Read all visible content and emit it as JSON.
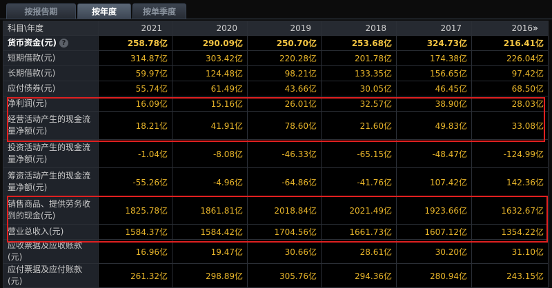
{
  "tabs": [
    {
      "label": "按报告期",
      "active": false
    },
    {
      "label": "按年度",
      "active": true
    },
    {
      "label": "按单季度",
      "active": false
    }
  ],
  "header": {
    "first_col": "科目\\年度",
    "years": [
      "2021",
      "2020",
      "2019",
      "2018",
      "2017",
      "2016"
    ],
    "more_glyph": "»"
  },
  "rows": [
    {
      "label": "货币资金(元)",
      "values": [
        "258.78亿",
        "290.09亿",
        "250.70亿",
        "253.68亿",
        "324.73亿",
        "216.41亿"
      ]
    },
    {
      "label": "短期借款(元)",
      "values": [
        "314.87亿",
        "303.42亿",
        "220.28亿",
        "201.78亿",
        "174.38亿",
        "226.04亿"
      ]
    },
    {
      "label": "长期借款(元)",
      "values": [
        "59.97亿",
        "124.48亿",
        "98.21亿",
        "133.35亿",
        "156.65亿",
        "97.42亿"
      ]
    },
    {
      "label": "应付债券(元)",
      "values": [
        "55.74亿",
        "61.49亿",
        "43.66亿",
        "30.05亿",
        "46.45亿",
        "68.50亿"
      ]
    },
    {
      "label": "净利润(元)",
      "values": [
        "16.09亿",
        "15.16亿",
        "26.01亿",
        "32.57亿",
        "38.90亿",
        "28.03亿"
      ]
    },
    {
      "label": "经营活动产生的现金流量净额(元)",
      "values": [
        "18.21亿",
        "41.91亿",
        "78.60亿",
        "21.60亿",
        "49.83亿",
        "33.08亿"
      ]
    },
    {
      "label": "投资活动产生的现金流量净额(元)",
      "values": [
        "-1.04亿",
        "-8.08亿",
        "-46.33亿",
        "-65.15亿",
        "-48.47亿",
        "-124.99亿"
      ]
    },
    {
      "label": "筹资活动产生的现金流量净额(元)",
      "values": [
        "-55.26亿",
        "-4.96亿",
        "-64.86亿",
        "-41.76亿",
        "107.42亿",
        "142.36亿"
      ]
    },
    {
      "label": "销售商品、提供劳务收到的现金(元)",
      "values": [
        "1825.78亿",
        "1861.81亿",
        "2018.84亿",
        "2021.49亿",
        "1923.66亿",
        "1632.67亿"
      ]
    },
    {
      "label": "营业总收入(元)",
      "values": [
        "1584.37亿",
        "1584.42亿",
        "1704.56亿",
        "1661.73亿",
        "1607.12亿",
        "1354.22亿"
      ]
    },
    {
      "label": "应收票据及应收账款(元)",
      "values": [
        "16.96亿",
        "19.47亿",
        "30.66亿",
        "28.61亿",
        "30.20亿",
        "31.10亿"
      ]
    },
    {
      "label": "应付票据及应付账款(元)",
      "values": [
        "261.32亿",
        "298.89亿",
        "305.76亿",
        "294.36亿",
        "280.94亿",
        "243.15亿"
      ]
    }
  ],
  "help_glyph": "?",
  "colors": {
    "highlight": "#e02020",
    "value": "#e8b52a"
  }
}
